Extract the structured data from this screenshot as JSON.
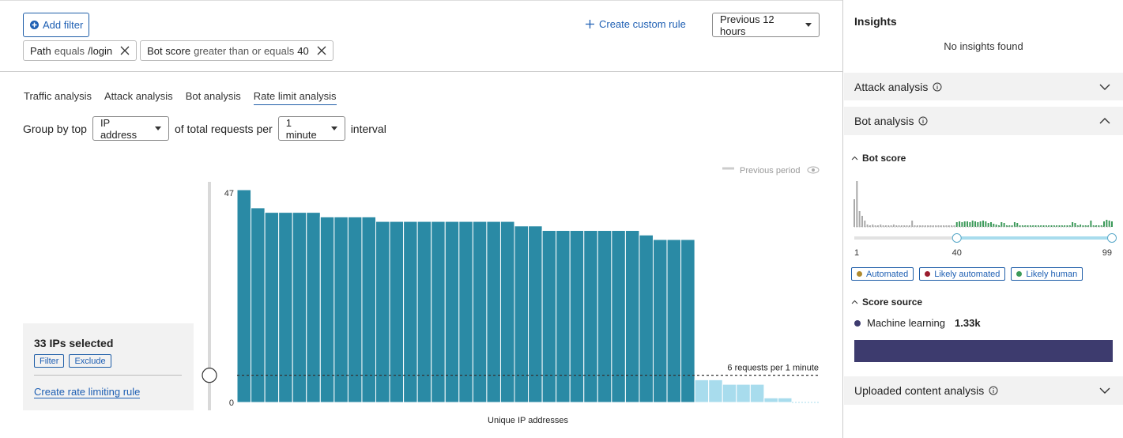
{
  "filters": {
    "add_filter": "Add filter",
    "chips": [
      {
        "field": "Path",
        "operator": "equals",
        "value": "/login"
      },
      {
        "field": "Bot score",
        "operator": "greater than or equals",
        "value": "40"
      }
    ]
  },
  "create_custom_rule": "Create custom rule",
  "time_range": "Previous 12 hours",
  "tabs": {
    "items": [
      "Traffic analysis",
      "Attack analysis",
      "Bot analysis",
      "Rate limit analysis"
    ],
    "active": 3
  },
  "group_by": {
    "prefix": "Group by top",
    "field": "IP address",
    "middle": "of total requests per",
    "interval": "1 minute",
    "suffix": "interval"
  },
  "chart": {
    "type": "bar",
    "legend": "Previous period",
    "x_label": "Unique IP addresses",
    "ylim": [
      0,
      47
    ],
    "yticks": [
      0,
      47
    ],
    "selected_color": "#2a8aa5",
    "other_color": "#a8dced",
    "selected": [
      47,
      43,
      42,
      42,
      42,
      42,
      41,
      41,
      41,
      41,
      40,
      40,
      40,
      40,
      40,
      40,
      40,
      40,
      40,
      40,
      39,
      39,
      38,
      38,
      38,
      38,
      38,
      38,
      38,
      37,
      36,
      36,
      36
    ],
    "other": [
      5,
      5,
      4,
      4,
      4,
      1,
      1
    ],
    "threshold": {
      "value": 6,
      "label": "6 requests per 1 minute"
    }
  },
  "selection": {
    "title": "33 IPs selected",
    "buttons": [
      "Filter",
      "Exclude"
    ],
    "link": "Create rate limiting rule"
  },
  "insights": {
    "title": "Insights",
    "empty": "No insights found",
    "attack_analysis": "Attack analysis",
    "bot_analysis": {
      "title": "Bot analysis",
      "bot_score": {
        "title": "Bot score",
        "xlim": [
          1,
          99
        ],
        "xticks": [
          1,
          40,
          99
        ],
        "selected_range": [
          40,
          99
        ],
        "color": "#a9a9a9",
        "selected_color": "#3c9a5a",
        "values": [
          35,
          58,
          20,
          14,
          8,
          3,
          2,
          3,
          2,
          2,
          3,
          2,
          2,
          2,
          2,
          3,
          2,
          2,
          2,
          2,
          2,
          2,
          8,
          2,
          2,
          2,
          2,
          2,
          2,
          2,
          2,
          2,
          2,
          2,
          2,
          2,
          2,
          2,
          2,
          6,
          7,
          6,
          7,
          7,
          6,
          8,
          7,
          6,
          7,
          8,
          7,
          5,
          6,
          4,
          3,
          2,
          6,
          5,
          2,
          2,
          2,
          6,
          5,
          2,
          2,
          2,
          2,
          2,
          2,
          2,
          2,
          2,
          2,
          2,
          2,
          2,
          2,
          2,
          2,
          2,
          2,
          2,
          2,
          6,
          5,
          2,
          3,
          2,
          2,
          2,
          8,
          2,
          2,
          2,
          2,
          7,
          9,
          8,
          7
        ]
      },
      "legend": [
        {
          "name": "Automated",
          "color": "#b08a2e"
        },
        {
          "name": "Likely automated",
          "color": "#9b1c2e"
        },
        {
          "name": "Likely human",
          "color": "#3c9a5a"
        }
      ],
      "score_source": {
        "title": "Score source",
        "color": "#3d3b6e",
        "items": [
          {
            "name": "Machine learning",
            "value": 1330,
            "value_label": "1.33k"
          }
        ]
      }
    },
    "uploaded_content": "Uploaded content analysis"
  }
}
